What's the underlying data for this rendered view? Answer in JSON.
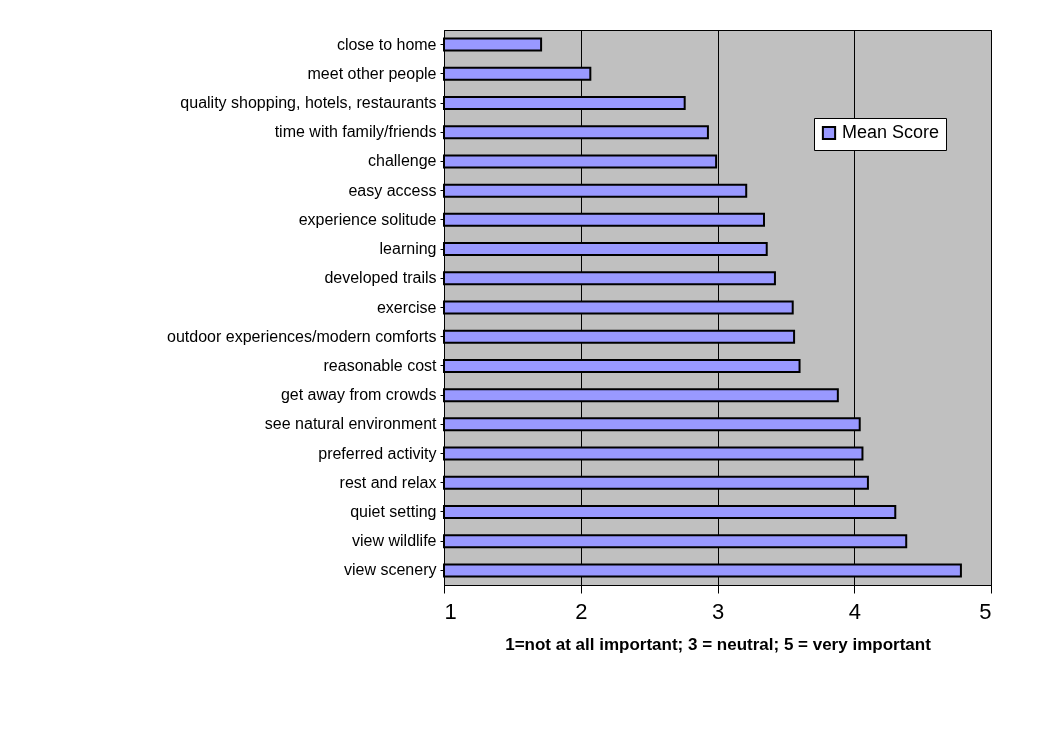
{
  "chart_data": {
    "type": "bar",
    "orientation": "horizontal",
    "xlabel": "1=not at all important; 3 = neutral; 5 = very important",
    "categories": [
      "close to home",
      "meet other people",
      "quality shopping, hotels, restaurants",
      "time with family/friends",
      "challenge",
      "easy access",
      "experience solitude",
      "learning",
      "developed trails",
      "exercise",
      "outdoor experiences/modern comforts",
      "reasonable cost",
      "get away from crowds",
      "see natural environment",
      "preferred activity",
      "rest and relax",
      "quiet setting",
      "view wildlife",
      "view scenery"
    ],
    "series": [
      {
        "name": "Mean Score",
        "color": "#9999ff",
        "values": [
          1.71,
          2.07,
          2.76,
          2.93,
          2.99,
          3.21,
          3.34,
          3.36,
          3.42,
          3.55,
          3.56,
          3.6,
          3.88,
          4.04,
          4.06,
          4.1,
          4.3,
          4.38,
          4.78
        ]
      }
    ],
    "xlim": [
      1,
      5
    ],
    "xticks": [
      1,
      2,
      3,
      4,
      5
    ],
    "grid": "x",
    "legend": "top right"
  }
}
